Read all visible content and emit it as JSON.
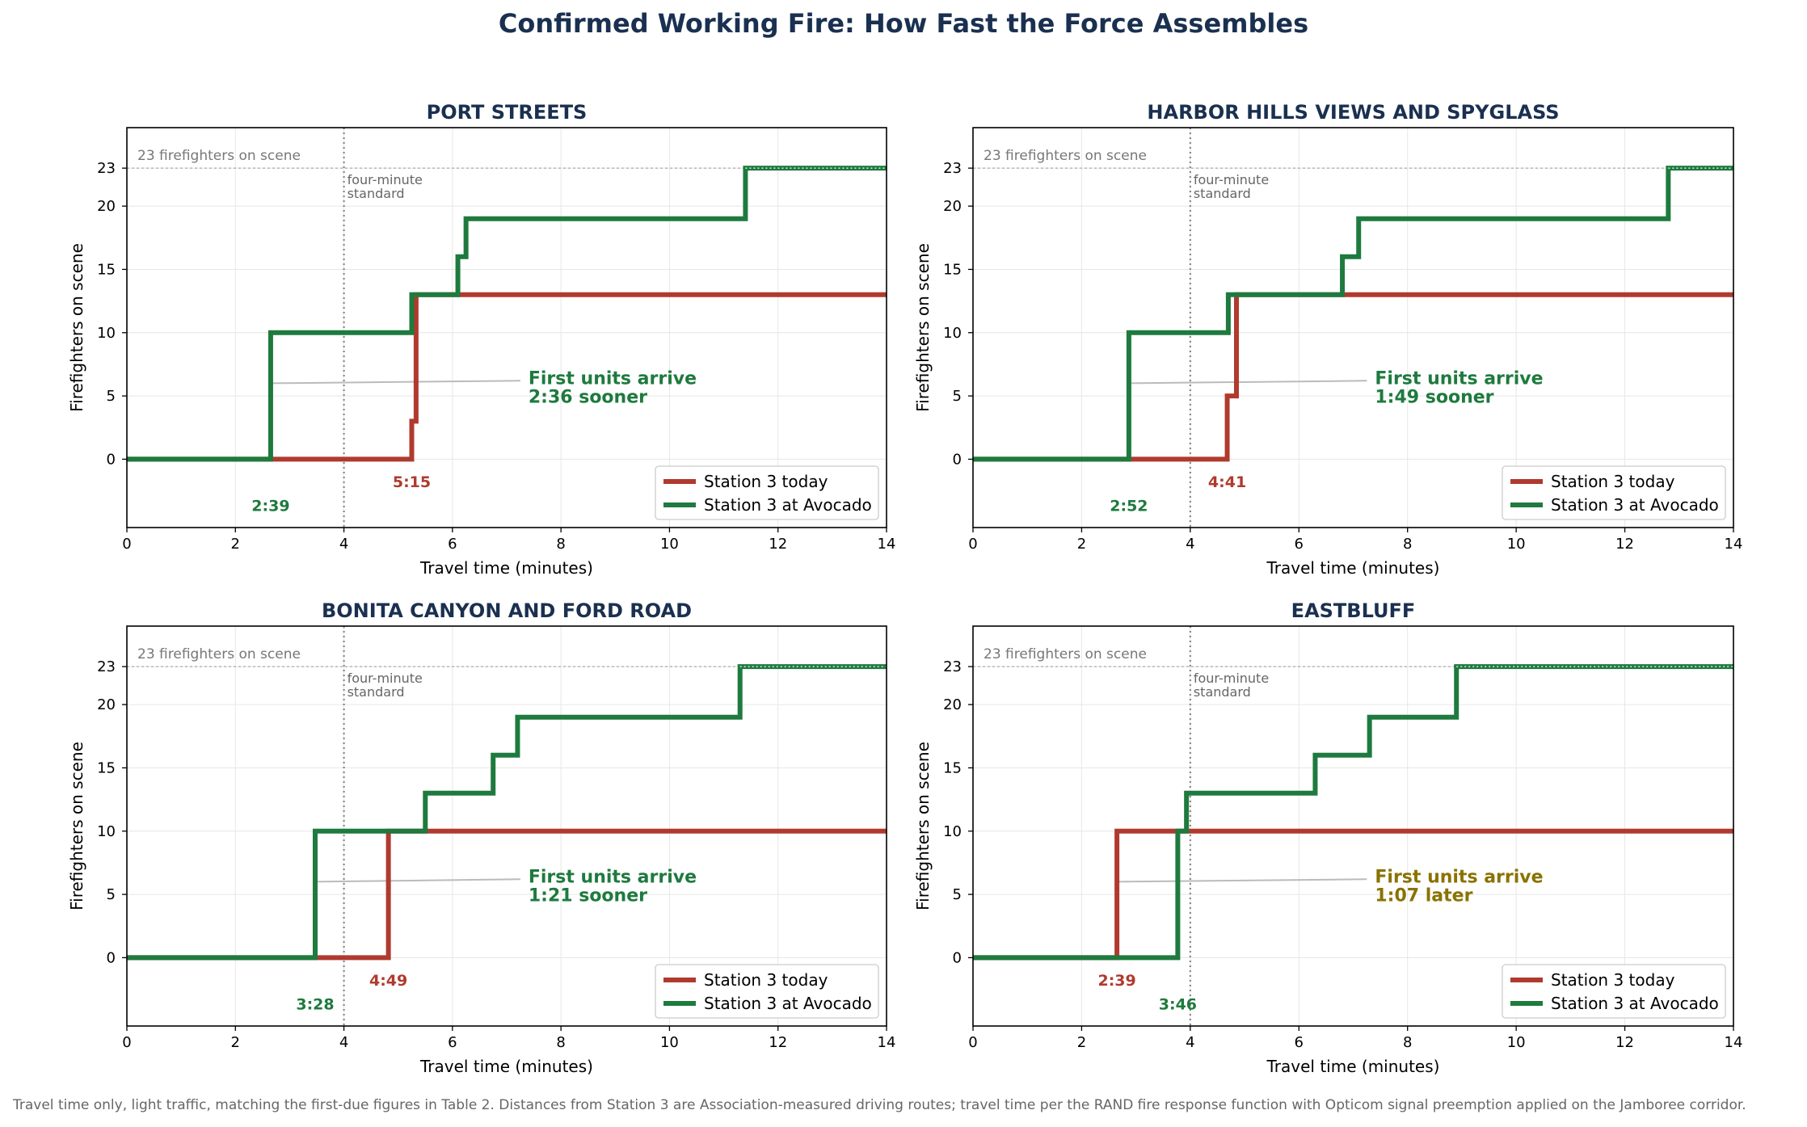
{
  "title": "Confirmed Working Fire: How Fast the Force Assembles",
  "footnote": "Travel time only, light traffic, matching the first-due figures in Table 2. Distances from Station 3 are Association-measured driving routes; travel time per the RAND fire response function with Opticom signal preemption applied on the Jamboree corridor.",
  "colors": {
    "title": "#1a3050",
    "today": "#b03a2e",
    "avocado": "#1e7a3e",
    "later": "#8a7200",
    "grid": "#e6e6e6",
    "reference": "#aaaaaa"
  },
  "chart_data": [
    {
      "type": "line",
      "step": true,
      "title": "PORT STREETS",
      "xlabel": "Travel time (minutes)",
      "ylabel": "Firefighters on scene",
      "xlim": [
        0,
        14
      ],
      "xticks": [
        "0",
        "2",
        "4",
        "6",
        "8",
        "10",
        "12",
        "14"
      ],
      "yticks": [
        "0",
        "5",
        "10",
        "15",
        "20",
        "23"
      ],
      "grid": true,
      "legend_position": "lower-right",
      "reference_line_text": "23 firefighters on scene",
      "standard_text": [
        "four-minute",
        "standard"
      ],
      "series": [
        {
          "name": "Station 3 today",
          "color": "#b03a2e",
          "x": [
            0,
            5.25,
            5.33,
            14
          ],
          "y": [
            0,
            3,
            13,
            13
          ],
          "first_arrival": 5.25,
          "first_arrival_label": "5:15"
        },
        {
          "name": "Station 3 at Avocado",
          "color": "#1e7a3e",
          "x": [
            0,
            2.65,
            5.25,
            6.1,
            6.25,
            11.4,
            14
          ],
          "y": [
            0,
            10,
            13,
            16,
            19,
            23,
            23
          ],
          "first_arrival": 2.65,
          "first_arrival_label": "2:39"
        }
      ],
      "annotation": {
        "lines": [
          "First units arrive",
          "2:36 sooner"
        ],
        "color": "#1e7a3e"
      }
    },
    {
      "type": "line",
      "step": true,
      "title": "HARBOR HILLS VIEWS AND SPYGLASS",
      "xlabel": "Travel time (minutes)",
      "ylabel": "Firefighters on scene",
      "xlim": [
        0,
        14
      ],
      "xticks": [
        "0",
        "2",
        "4",
        "6",
        "8",
        "10",
        "12",
        "14"
      ],
      "yticks": [
        "0",
        "5",
        "10",
        "15",
        "20",
        "23"
      ],
      "grid": true,
      "legend_position": "lower-right",
      "reference_line_text": "23 firefighters on scene",
      "standard_text": [
        "four-minute",
        "standard"
      ],
      "series": [
        {
          "name": "Station 3 today",
          "color": "#b03a2e",
          "x": [
            0,
            4.68,
            4.85,
            14
          ],
          "y": [
            0,
            5,
            13,
            13
          ],
          "first_arrival": 4.68,
          "first_arrival_label": "4:41"
        },
        {
          "name": "Station 3 at Avocado",
          "color": "#1e7a3e",
          "x": [
            0,
            2.87,
            4.7,
            6.8,
            7.1,
            12.8,
            14
          ],
          "y": [
            0,
            10,
            13,
            16,
            19,
            23,
            23
          ],
          "first_arrival": 2.87,
          "first_arrival_label": "2:52"
        }
      ],
      "annotation": {
        "lines": [
          "First units arrive",
          "1:49 sooner"
        ],
        "color": "#1e7a3e"
      }
    },
    {
      "type": "line",
      "step": true,
      "title": "BONITA CANYON AND FORD ROAD",
      "xlabel": "Travel time (minutes)",
      "ylabel": "Firefighters on scene",
      "xlim": [
        0,
        14
      ],
      "xticks": [
        "0",
        "2",
        "4",
        "6",
        "8",
        "10",
        "12",
        "14"
      ],
      "yticks": [
        "0",
        "5",
        "10",
        "15",
        "20",
        "23"
      ],
      "grid": true,
      "legend_position": "lower-right",
      "reference_line_text": "23 firefighters on scene",
      "standard_text": [
        "four-minute",
        "standard"
      ],
      "series": [
        {
          "name": "Station 3 today",
          "color": "#b03a2e",
          "x": [
            0,
            4.82,
            14
          ],
          "y": [
            0,
            10,
            10
          ],
          "first_arrival": 4.82,
          "first_arrival_label": "4:49"
        },
        {
          "name": "Station 3 at Avocado",
          "color": "#1e7a3e",
          "x": [
            0,
            3.47,
            5.5,
            6.75,
            7.2,
            11.3,
            14
          ],
          "y": [
            0,
            10,
            13,
            16,
            19,
            23,
            23
          ],
          "first_arrival": 3.47,
          "first_arrival_label": "3:28"
        }
      ],
      "annotation": {
        "lines": [
          "First units arrive",
          "1:21 sooner"
        ],
        "color": "#1e7a3e"
      }
    },
    {
      "type": "line",
      "step": true,
      "title": "EASTBLUFF",
      "xlabel": "Travel time (minutes)",
      "ylabel": "Firefighters on scene",
      "xlim": [
        0,
        14
      ],
      "xticks": [
        "0",
        "2",
        "4",
        "6",
        "8",
        "10",
        "12",
        "14"
      ],
      "yticks": [
        "0",
        "5",
        "10",
        "15",
        "20",
        "23"
      ],
      "grid": true,
      "legend_position": "lower-right",
      "reference_line_text": "23 firefighters on scene",
      "standard_text": [
        "four-minute",
        "standard"
      ],
      "series": [
        {
          "name": "Station 3 today",
          "color": "#b03a2e",
          "x": [
            0,
            2.65,
            3.9,
            14
          ],
          "y": [
            0,
            10,
            10,
            10
          ],
          "first_arrival": 2.65,
          "first_arrival_label": "2:39"
        },
        {
          "name": "Station 3 at Avocado",
          "color": "#1e7a3e",
          "x": [
            0,
            3.77,
            3.93,
            6.3,
            7.3,
            8.9,
            14
          ],
          "y": [
            0,
            10,
            13,
            16,
            19,
            23,
            23
          ],
          "first_arrival": 3.77,
          "first_arrival_label": "3:46"
        }
      ],
      "annotation": {
        "lines": [
          "First units arrive",
          "1:07 later"
        ],
        "color": "#8a7200"
      }
    }
  ]
}
